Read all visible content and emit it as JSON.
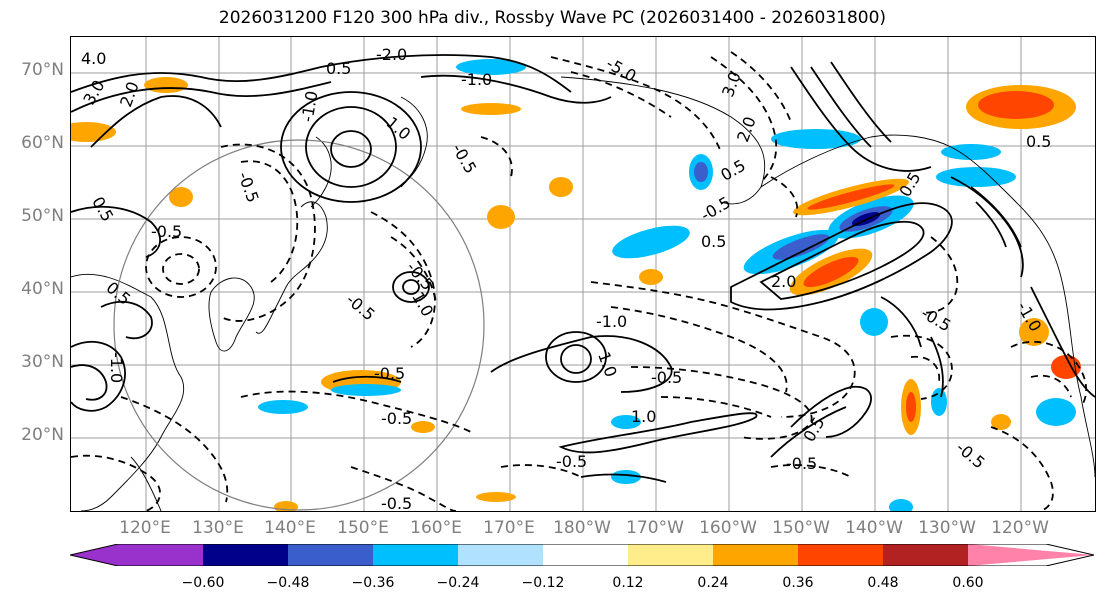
{
  "title": "2026031200 F120 300 hPa div., Rossby Wave PC (2026031400 - 2026031800)",
  "lat_labels": [
    "70°N",
    "60°N",
    "50°N",
    "40°N",
    "30°N",
    "20°N"
  ],
  "lon_labels": [
    "120°E",
    "130°E",
    "140°E",
    "150°E",
    "160°E",
    "170°E",
    "180°W",
    "170°W",
    "160°W",
    "150°W",
    "140°W",
    "130°W",
    "120°W"
  ],
  "colorbar": {
    "ticks": [
      "−0.60",
      "−0.48",
      "−0.36",
      "−0.24",
      "−0.12",
      "0.12",
      "0.24",
      "0.36",
      "0.48",
      "0.60"
    ],
    "colors": [
      "#9932cc",
      "#00008b",
      "#3a5fcd",
      "#00bfff",
      "#b0e2ff",
      "#ffffff",
      "#ffec8b",
      "#ffa500",
      "#ff4500",
      "#b22222",
      "#ff82ab"
    ]
  },
  "contour_labels": [
    "4.0",
    "3.0",
    "2.0",
    "0.5",
    "-2.0",
    "-1.0",
    "-5.0",
    "3.0",
    "2.0",
    "-0.5",
    "1.0",
    "-1.0",
    "-0.5",
    "0.5",
    "-0.5",
    "0.5",
    "-1.0",
    "1.0",
    "-0.5",
    "0.5",
    "-0.5",
    "-0.5",
    "-1.0",
    "1.0",
    "-0.5",
    "-0.5",
    "0.5",
    "-0.5",
    "1.0",
    "-0.5",
    "-0.5",
    "2.0",
    "0.5",
    "-0.5",
    "-0.5",
    "0.5",
    "-0.5",
    "0.5",
    "-1.0"
  ]
}
